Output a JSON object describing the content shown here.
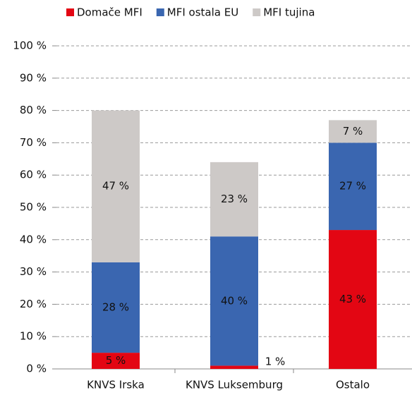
{
  "chart_data": {
    "type": "stacked_bar",
    "categories": [
      "KNVS Irska",
      "KNVS Luksemburg",
      "Ostalo"
    ],
    "series": [
      {
        "name": "Domače MFI",
        "color": "#e30613",
        "values": [
          5,
          1,
          43
        ],
        "value_labels": [
          "5 %",
          "1 %",
          "43 %"
        ]
      },
      {
        "name": "MFI ostala EU",
        "color": "#3a66b0",
        "values": [
          28,
          40,
          27
        ],
        "value_labels": [
          "28 %",
          "40 %",
          "27 %"
        ]
      },
      {
        "name": "MFI tujina",
        "color": "#cdc9c7",
        "values": [
          47,
          23,
          7
        ],
        "value_labels": [
          "47 %",
          "23 %",
          "7 %"
        ]
      }
    ],
    "ylim": [
      0,
      100
    ],
    "yticks": [
      {
        "value": 0,
        "label": "0 %"
      },
      {
        "value": 10,
        "label": "10 %"
      },
      {
        "value": 20,
        "label": "20 %"
      },
      {
        "value": 30,
        "label": "30 %"
      },
      {
        "value": 40,
        "label": "40 %"
      },
      {
        "value": 50,
        "label": "50 %"
      },
      {
        "value": 60,
        "label": "60 %"
      },
      {
        "value": 70,
        "label": "70 %"
      },
      {
        "value": 80,
        "label": "80 %"
      },
      {
        "value": 90,
        "label": "90 %"
      },
      {
        "value": 100,
        "label": "100 %"
      }
    ],
    "grid": true,
    "legend": "top"
  }
}
